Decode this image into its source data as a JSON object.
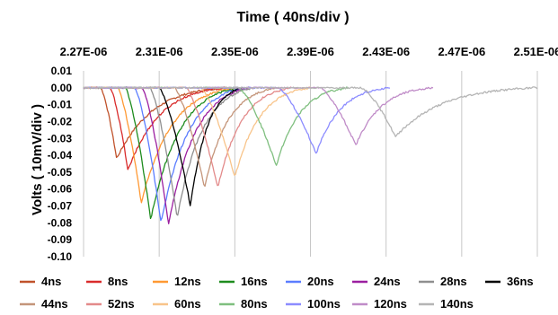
{
  "chart_data": {
    "type": "line",
    "title": "Time ( 40ns/div )",
    "xlabel": "Time ( 40ns/div )",
    "ylabel": "Volts ( 10mV/div )",
    "x_axis_position": "top",
    "x_ticks": [
      "2.27E-06",
      "2.31E-06",
      "2.35E-06",
      "2.39E-06",
      "2.43E-06",
      "2.47E-06",
      "2.51E-06"
    ],
    "x_tick_values": [
      2.27e-06,
      2.31e-06,
      2.35e-06,
      2.39e-06,
      2.43e-06,
      2.47e-06,
      2.51e-06
    ],
    "xlim": [
      2.27e-06,
      2.51e-06
    ],
    "y_ticks": [
      "0.01",
      "0.00",
      "-0.01",
      "-0.02",
      "-0.03",
      "-0.04",
      "-0.05",
      "-0.06",
      "-0.07",
      "-0.08",
      "-0.09",
      "-0.10"
    ],
    "ylim": [
      -0.1,
      0.01
    ],
    "grid": "vertical",
    "legend_placement": "bottom",
    "series": [
      {
        "name": "4ns",
        "color": "#c0522b",
        "start": 2.27e-06,
        "dip_onset": 2.279e-06,
        "dip_time": 2.2875e-06,
        "min": -0.042,
        "recovery": 2.345e-06
      },
      {
        "name": "8ns",
        "color": "#d92b2b",
        "start": 2.27e-06,
        "dip_onset": 2.284e-06,
        "dip_time": 2.2935e-06,
        "min": -0.049,
        "recovery": 2.345e-06
      },
      {
        "name": "12ns",
        "color": "#ff9933",
        "start": 2.27e-06,
        "dip_onset": 2.288e-06,
        "dip_time": 2.3005e-06,
        "min": -0.068,
        "recovery": 2.35e-06
      },
      {
        "name": "16ns",
        "color": "#1e8c1e",
        "start": 2.27e-06,
        "dip_onset": 2.292e-06,
        "dip_time": 2.3055e-06,
        "min": -0.078,
        "recovery": 2.352e-06
      },
      {
        "name": "20ns",
        "color": "#5b7dff",
        "start": 2.27e-06,
        "dip_onset": 2.297e-06,
        "dip_time": 2.311e-06,
        "min": -0.08,
        "recovery": 2.355e-06
      },
      {
        "name": "24ns",
        "color": "#9b1fa0",
        "start": 2.27e-06,
        "dip_onset": 2.301e-06,
        "dip_time": 2.315e-06,
        "min": -0.081,
        "recovery": 2.358e-06
      },
      {
        "name": "28ns",
        "color": "#8f8f8f",
        "start": 2.27e-06,
        "dip_onset": 2.305e-06,
        "dip_time": 2.3195e-06,
        "min": -0.077,
        "recovery": 2.36e-06
      },
      {
        "name": "36ns",
        "color": "#000000",
        "start": 2.27e-06,
        "dip_onset": 2.31e-06,
        "dip_time": 2.3265e-06,
        "min": -0.07,
        "recovery": 2.354e-06
      },
      {
        "name": "44ns",
        "color": "#c4957a",
        "start": 2.27e-06,
        "dip_onset": 2.318e-06,
        "dip_time": 2.334e-06,
        "min": -0.059,
        "recovery": 2.372e-06
      },
      {
        "name": "52ns",
        "color": "#e38a8a",
        "start": 2.27e-06,
        "dip_onset": 2.324e-06,
        "dip_time": 2.341e-06,
        "min": -0.059,
        "recovery": 2.38e-06
      },
      {
        "name": "60ns",
        "color": "#f8c48a",
        "start": 2.27e-06,
        "dip_onset": 2.332e-06,
        "dip_time": 2.35e-06,
        "min": -0.053,
        "recovery": 2.39e-06
      },
      {
        "name": "80ns",
        "color": "#7fbf7f",
        "start": 2.27e-06,
        "dip_onset": 2.352e-06,
        "dip_time": 2.372e-06,
        "min": -0.046,
        "recovery": 2.41e-06
      },
      {
        "name": "100ns",
        "color": "#8c8cff",
        "start": 2.27e-06,
        "dip_onset": 2.373e-06,
        "dip_time": 2.393e-06,
        "min": -0.039,
        "recovery": 2.432e-06
      },
      {
        "name": "120ns",
        "color": "#c08cc8",
        "start": 2.27e-06,
        "dip_onset": 2.395e-06,
        "dip_time": 2.414e-06,
        "min": -0.034,
        "recovery": 2.455e-06
      },
      {
        "name": "140ns",
        "color": "#b5b5b5",
        "start": 2.27e-06,
        "dip_onset": 2.417e-06,
        "dip_time": 2.435e-06,
        "min": -0.029,
        "recovery": 2.51e-06
      }
    ]
  }
}
